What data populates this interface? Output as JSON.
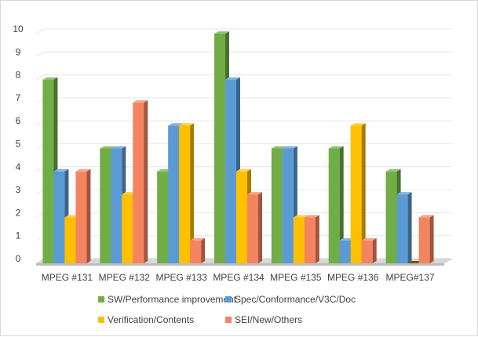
{
  "chart_data": {
    "type": "bar",
    "title": "",
    "xlabel": "",
    "ylabel": "",
    "categories": [
      "MPEG #131",
      "MPEG #132",
      "MPEG #133",
      "MPEG #134",
      "MPEG #135",
      "MPEG #136",
      "MPEG#137"
    ],
    "series": [
      {
        "name": "SW/Performance improvement",
        "color": "#70ad47",
        "values": [
          8,
          5,
          4,
          10,
          5,
          5,
          4
        ]
      },
      {
        "name": "Spec/Conformance/V3C/Doc",
        "color": "#5b9bd5",
        "values": [
          4,
          5,
          6,
          8,
          5,
          1,
          3
        ]
      },
      {
        "name": "Verification/Contents",
        "color": "#ffc000",
        "values": [
          2,
          3,
          6,
          4,
          2,
          6,
          0
        ]
      },
      {
        "name": "SEI/New/Others",
        "color": "#f4845f",
        "values": [
          4,
          7,
          1,
          3,
          2,
          1,
          2
        ]
      }
    ],
    "ylim": [
      0,
      10
    ],
    "yticks": [
      0,
      1,
      2,
      3,
      4,
      5,
      6,
      7,
      8,
      9,
      10
    ],
    "grid": true,
    "legend_position": "bottom",
    "style": "3d-clustered-column"
  }
}
